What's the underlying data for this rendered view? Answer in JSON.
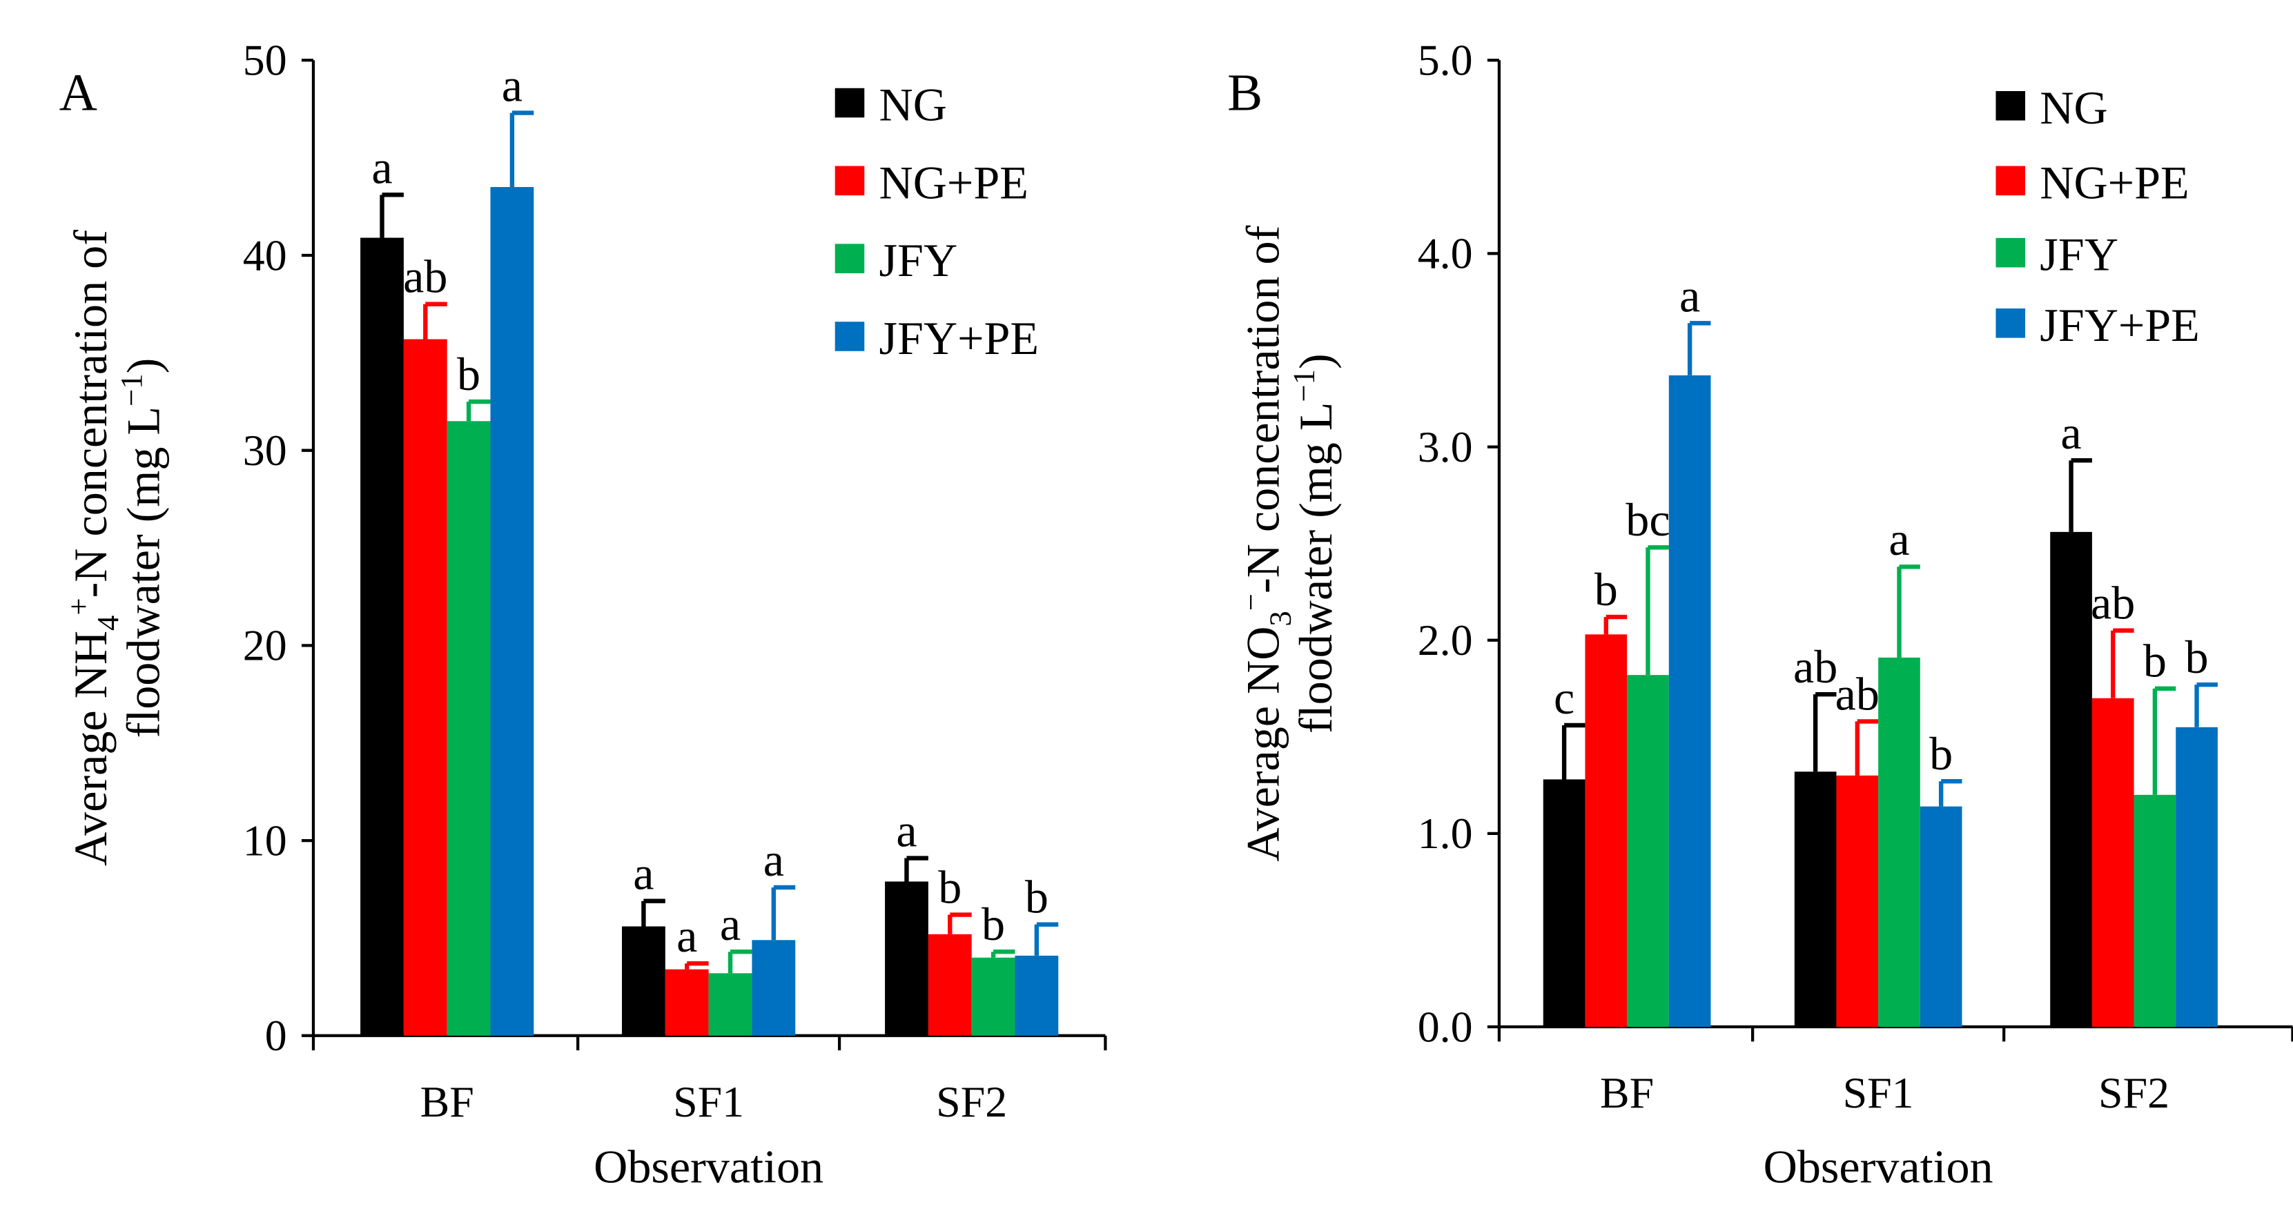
{
  "chart_data": [
    {
      "type": "bar",
      "panel_label": "A",
      "title": "",
      "xlabel": "Observation",
      "ylabel_parts": {
        "pre": "Average NH",
        "sub": "4",
        "sup": "+",
        "post": "-N concentration of",
        "line2": "floodwater (mg L",
        "line2_sup": "−1",
        "line2_end": ")"
      },
      "ylim": [
        0,
        50
      ],
      "yticks": [
        "0",
        "10",
        "20",
        "30",
        "40",
        "50"
      ],
      "ytick_values": [
        0,
        10,
        20,
        30,
        40,
        50
      ],
      "categories": [
        "BF",
        "SF1",
        "SF2"
      ],
      "legend_position": "top-right",
      "series": [
        {
          "name": "NG",
          "color": "#000000",
          "values": [
            40.9,
            5.6,
            7.9
          ],
          "error_top": [
            43.1,
            6.9,
            9.1
          ],
          "letters": [
            "a",
            "a",
            "a"
          ]
        },
        {
          "name": "NG+PE",
          "color": "#ff0000",
          "values": [
            35.7,
            3.4,
            5.2
          ],
          "error_top": [
            37.5,
            3.7,
            6.2
          ],
          "letters": [
            "ab",
            "a",
            "b"
          ]
        },
        {
          "name": "JFY",
          "color": "#00b050",
          "values": [
            31.5,
            3.2,
            4.0
          ],
          "error_top": [
            32.5,
            4.3,
            4.3
          ],
          "letters": [
            "b",
            "a",
            "b"
          ]
        },
        {
          "name": "JFY+PE",
          "color": "#0070c0",
          "values": [
            43.5,
            4.9,
            4.1
          ],
          "error_top": [
            47.3,
            7.6,
            5.7
          ],
          "letters": [
            "a",
            "a",
            "b"
          ]
        }
      ]
    },
    {
      "type": "bar",
      "panel_label": "B",
      "title": "",
      "xlabel": "Observation",
      "ylabel_parts": {
        "pre": "Average NO",
        "sub": "3",
        "sup": "−",
        "post": "-N concentration of",
        "line2": "floodwater (mg L",
        "line2_sup": "−1",
        "line2_end": ")"
      },
      "ylim": [
        0,
        5
      ],
      "yticks": [
        "0.0",
        "1.0",
        "2.0",
        "3.0",
        "4.0",
        "5.0"
      ],
      "ytick_values": [
        0,
        1,
        2,
        3,
        4,
        5
      ],
      "categories": [
        "BF",
        "SF1",
        "SF2"
      ],
      "legend_position": "top-right",
      "series": [
        {
          "name": "NG",
          "color": "#000000",
          "values": [
            1.28,
            1.32,
            2.56
          ],
          "error_top": [
            1.56,
            1.72,
            2.93
          ],
          "letters": [
            "c",
            "ab",
            "a"
          ]
        },
        {
          "name": "NG+PE",
          "color": "#ff0000",
          "values": [
            2.03,
            1.3,
            1.7
          ],
          "error_top": [
            2.12,
            1.58,
            2.05
          ],
          "letters": [
            "b",
            "ab",
            "ab"
          ]
        },
        {
          "name": "JFY",
          "color": "#00b050",
          "values": [
            1.82,
            1.91,
            1.2
          ],
          "error_top": [
            2.48,
            2.38,
            1.75
          ],
          "letters": [
            "bc",
            "a",
            "b"
          ]
        },
        {
          "name": "JFY+PE",
          "color": "#0070c0",
          "values": [
            3.37,
            1.14,
            1.55
          ],
          "error_top": [
            3.64,
            1.27,
            1.77
          ],
          "letters": [
            "a",
            "b",
            "b"
          ]
        }
      ]
    }
  ]
}
